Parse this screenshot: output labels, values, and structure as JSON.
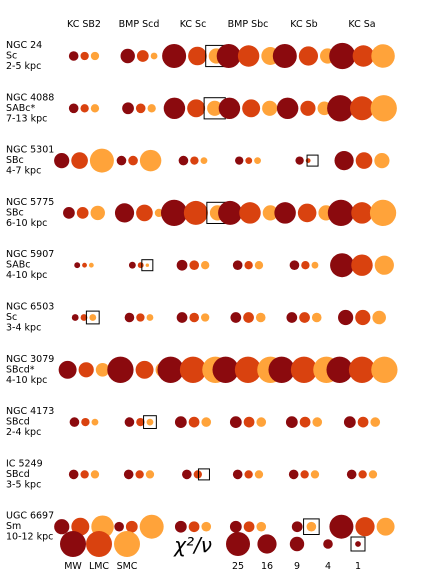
{
  "chart_data": {
    "type": "bubble-grid",
    "columns": [
      "KC SB2",
      "BMP Scd",
      "KC Sc",
      "BMP Sbc",
      "KC Sb",
      "KC Sa"
    ],
    "dot_order": [
      "MW",
      "LMC",
      "SMC"
    ],
    "colors": {
      "MW": "#8B0A0E",
      "LMC": "#D9420F",
      "SMC": "#FFA33A"
    },
    "boxed_marker": "square outline marks the best-fitting model (chi2/nu ~ 1)",
    "galaxies": [
      {
        "name": "NGC 24",
        "type": "Sc",
        "range": "2-5 kpc",
        "chi2": [
          [
            4,
            3,
            3
          ],
          [
            9,
            6,
            2
          ],
          [
            25,
            15,
            10
          ],
          [
            25,
            20,
            14
          ],
          [
            25,
            16,
            10
          ],
          [
            30,
            20,
            24
          ]
        ],
        "box": [
          0,
          0,
          1,
          0,
          0,
          0
        ]
      },
      {
        "name": "NGC 4088",
        "type": "SABc*",
        "range": "7-13 kpc",
        "chi2": [
          [
            4,
            3,
            3
          ],
          [
            6,
            4,
            3
          ],
          [
            20,
            14,
            10
          ],
          [
            20,
            14,
            10
          ],
          [
            20,
            10,
            8
          ],
          [
            30,
            25,
            30
          ]
        ],
        "box": [
          0,
          0,
          1,
          0,
          0,
          0
        ]
      },
      {
        "name": "NGC 5301",
        "type": "SBc",
        "range": "4-7 kpc",
        "chi2": [
          [
            10,
            12,
            25
          ],
          [
            4,
            4,
            20
          ],
          [
            4,
            3,
            2
          ],
          [
            3,
            2,
            2
          ],
          [
            3,
            1,
            0
          ],
          [
            16,
            12,
            10
          ]
        ],
        "box": [
          0,
          0,
          0,
          0,
          1,
          0
        ]
      },
      {
        "name": "NGC 5775",
        "type": "SBc",
        "range": "6-10 kpc",
        "chi2": [
          [
            6,
            6,
            9
          ],
          [
            16,
            12,
            3
          ],
          [
            30,
            25,
            10
          ],
          [
            25,
            20,
            10
          ],
          [
            20,
            15,
            10
          ],
          [
            30,
            20,
            30
          ]
        ],
        "box": [
          0,
          0,
          1,
          0,
          0,
          0
        ]
      },
      {
        "name": "NGC 5907",
        "type": "SABc",
        "range": "4-10 kpc",
        "chi2": [
          [
            1.5,
            1,
            1
          ],
          [
            2,
            1.5,
            0.5
          ],
          [
            5,
            4,
            3
          ],
          [
            4,
            3,
            3
          ],
          [
            4,
            3,
            2
          ],
          [
            25,
            20,
            16
          ]
        ],
        "box": [
          0,
          1,
          0,
          0,
          0,
          0
        ]
      },
      {
        "name": "NGC 6503",
        "type": "Sc",
        "range": "3-4 kpc",
        "chi2": [
          [
            2,
            2,
            2
          ],
          [
            4,
            3,
            2
          ],
          [
            5,
            4,
            3
          ],
          [
            5,
            5,
            4
          ],
          [
            5,
            5,
            4
          ],
          [
            10,
            10,
            8
          ]
        ],
        "box": [
          1,
          0,
          0,
          0,
          0,
          0
        ]
      },
      {
        "name": "NGC 3079",
        "type": "SBcd*",
        "range": "4-10 kpc",
        "chi2": [
          [
            14,
            10,
            8
          ],
          [
            30,
            14,
            10
          ],
          [
            30,
            30,
            30
          ],
          [
            30,
            30,
            30
          ],
          [
            30,
            30,
            30
          ],
          [
            30,
            30,
            30
          ]
        ],
        "box": [
          0,
          0,
          0,
          0,
          0,
          0
        ]
      },
      {
        "name": "NGC 4173",
        "type": "SBcd",
        "range": "2-4 kpc",
        "chi2": [
          [
            4,
            3,
            2
          ],
          [
            4,
            3,
            2
          ],
          [
            6,
            5,
            4
          ],
          [
            6,
            5,
            4
          ],
          [
            6,
            5,
            4
          ],
          [
            6,
            5,
            4
          ]
        ],
        "box": [
          0,
          1,
          0,
          0,
          0,
          0
        ]
      },
      {
        "name": "IC 5249",
        "type": "SBcd",
        "range": "3-5 kpc",
        "chi2": [
          [
            4,
            3,
            3
          ],
          [
            4,
            3,
            3
          ],
          [
            4,
            3,
            0
          ],
          [
            4,
            3,
            3
          ],
          [
            4,
            3,
            3
          ],
          [
            4,
            3,
            3
          ]
        ],
        "box": [
          0,
          0,
          1,
          0,
          0,
          0
        ]
      },
      {
        "name": "UGC 6697",
        "type": "Sm",
        "range": "10-12 kpc",
        "chi2": [
          [
            10,
            14,
            22
          ],
          [
            4,
            6,
            25
          ],
          [
            6,
            5,
            4
          ],
          [
            6,
            5,
            4
          ],
          [
            5,
            0,
            4
          ],
          [
            25,
            16,
            14
          ]
        ],
        "box": [
          0,
          0,
          0,
          0,
          1,
          0
        ]
      }
    ],
    "legend": {
      "extinction_curves": [
        "MW",
        "LMC",
        "SMC"
      ],
      "chi_label": "χ²/ν",
      "scale_values": [
        25,
        16,
        9,
        4,
        1
      ]
    }
  }
}
